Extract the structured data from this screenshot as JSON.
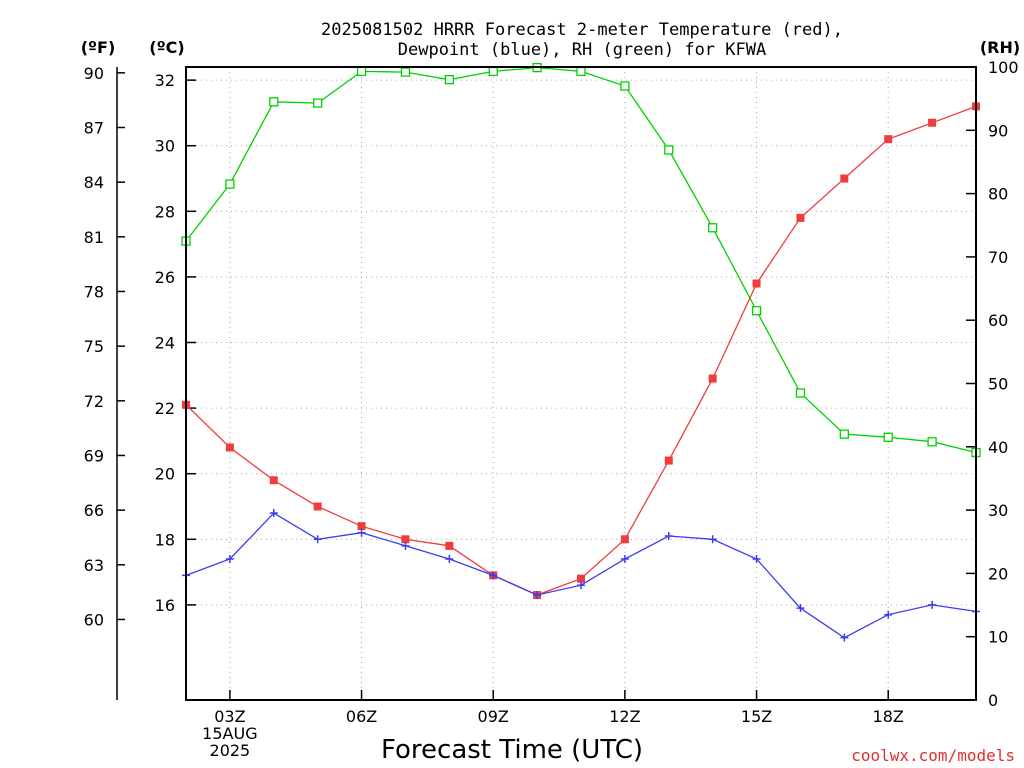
{
  "chart_data": {
    "type": "line",
    "title_line1": "2025081502 HRRR Forecast 2-meter Temperature (red),",
    "title_line2": "Dewpoint (blue), RH (green) for KFWA",
    "xlabel": "Forecast Time (UTC)",
    "credit": "coolwx.com/models",
    "y_left_f_label": "(ºF)",
    "y_left_c_label": "(ºC)",
    "y_right_label": "(RH)",
    "x_hours_utc": [
      2,
      3,
      4,
      5,
      6,
      7,
      8,
      9,
      10,
      11,
      12,
      13,
      14,
      15,
      16,
      17,
      18,
      19,
      20
    ],
    "x_tick_labels": [
      {
        "hour": 3,
        "line1": "03Z",
        "line2": "15AUG",
        "line3": "2025"
      },
      {
        "hour": 6,
        "line1": "06Z",
        "line2": "",
        "line3": ""
      },
      {
        "hour": 9,
        "line1": "09Z",
        "line2": "",
        "line3": ""
      },
      {
        "hour": 12,
        "line1": "12Z",
        "line2": "",
        "line3": ""
      },
      {
        "hour": 15,
        "line1": "15Z",
        "line2": "",
        "line3": ""
      },
      {
        "hour": 18,
        "line1": "18Z",
        "line2": "",
        "line3": ""
      }
    ],
    "xlim": [
      2,
      20
    ],
    "celsius_ticks": [
      "16",
      "18",
      "20",
      "22",
      "24",
      "26",
      "28",
      "30",
      "32"
    ],
    "fahrenheit_ticks": [
      "60",
      "63",
      "66",
      "69",
      "72",
      "75",
      "78",
      "81",
      "84",
      "87",
      "90"
    ],
    "rh_ticks": [
      "0",
      "10",
      "20",
      "30",
      "40",
      "50",
      "60",
      "70",
      "80",
      "90",
      "100"
    ],
    "celsius_lim": [
      13.1,
      32.4
    ],
    "rh_lim": [
      0,
      100
    ],
    "series": [
      {
        "name": "Temperature",
        "units": "°C",
        "color": "#f03c3c",
        "marker": "filled-square",
        "values": [
          22.1,
          20.8,
          19.8,
          19.0,
          18.4,
          18.0,
          17.8,
          16.9,
          16.3,
          16.8,
          18.0,
          20.4,
          22.9,
          25.8,
          27.8,
          29.0,
          30.2,
          30.7,
          31.2
        ]
      },
      {
        "name": "Dewpoint",
        "units": "°C",
        "color": "#3c3cf0",
        "marker": "plus",
        "values": [
          16.9,
          17.4,
          18.8,
          18.0,
          18.2,
          17.8,
          17.4,
          16.9,
          16.3,
          16.6,
          17.4,
          18.1,
          18.0,
          17.4,
          15.9,
          15.0,
          15.7,
          16.0,
          15.8
        ]
      },
      {
        "name": "Relative Humidity",
        "units": "%",
        "color": "#00d200",
        "marker": "open-square",
        "values": [
          72.5,
          81.5,
          94.5,
          94.3,
          99.3,
          99.2,
          98.0,
          99.3,
          99.9,
          99.3,
          97.0,
          86.9,
          74.6,
          61.5,
          48.5,
          42.0,
          41.5,
          40.8,
          39.1
        ]
      }
    ],
    "grid": true
  }
}
